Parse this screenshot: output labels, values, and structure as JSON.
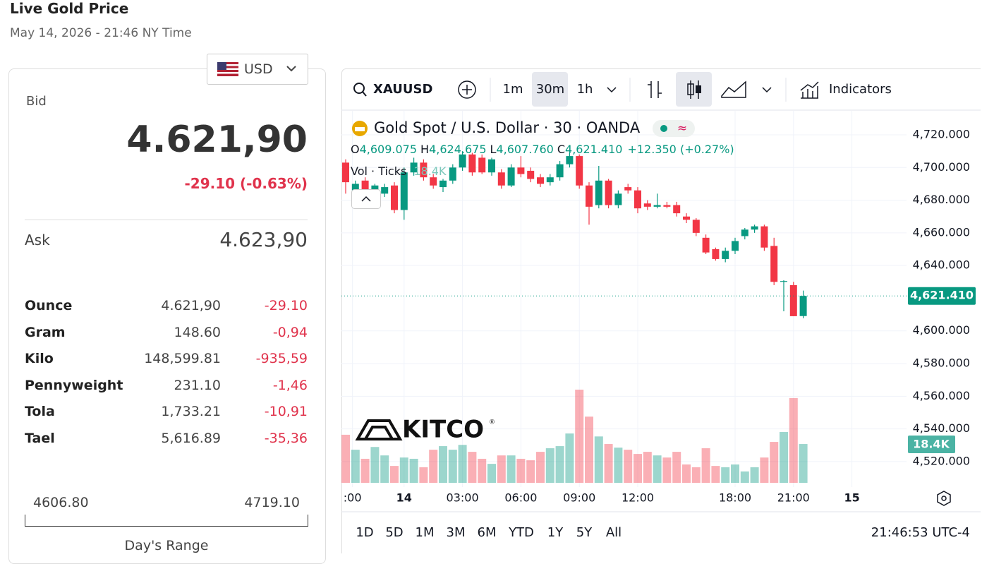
{
  "header": {
    "title": "Live Gold Price",
    "subtitle": "May 14, 2026 - 21:46 NY Time"
  },
  "currency": "USD",
  "quote": {
    "bid_label": "Bid",
    "bid": "4.621,90",
    "change": "-29.10 (-0.63%)",
    "ask_label": "Ask",
    "ask": "4.623,90"
  },
  "units": {
    "rows": [
      [
        "Ounce",
        "4.621,90",
        "-29.10"
      ],
      [
        "Gram",
        "148.60",
        "-0,94"
      ],
      [
        "Kilo",
        "148,599.81",
        "-935,59"
      ],
      [
        "Pennyweight",
        "231.10",
        "-1,46"
      ],
      [
        "Tola",
        "1,733.21",
        "-10,91"
      ],
      [
        "Tael",
        "5,616.89",
        "-35,36"
      ]
    ]
  },
  "day_range": {
    "low": "4606.80",
    "high": "4719.10",
    "label": "Day's Range"
  },
  "toolbar": {
    "symbol": "XAUUSD",
    "intervals": [
      "1m",
      "30m",
      "1h"
    ],
    "indicators": "Indicators"
  },
  "ranges": [
    "1D",
    "5D",
    "1M",
    "3M",
    "6M",
    "YTD",
    "1Y",
    "5Y",
    "All"
  ],
  "clock": "21:46:53 UTC-4",
  "chart_data": {
    "type": "candlestick",
    "title": "Gold Spot / U.S. Dollar · 30 · OANDA",
    "legend": {
      "o": "O",
      "o_value": "4,609.075",
      "h": "H",
      "h_value": "4,624.675",
      "l": "L",
      "l_value": "4,607.760",
      "c": "C",
      "c_value": "4,621.410",
      "change": "+12.350 (+0.27%)"
    },
    "volume_name": "Vol · Ticks",
    "volume_label": "18.4K",
    "last_price_label": "4,621.410",
    "watermark": "KITCO",
    "open": [
      4703,
      4686,
      4692,
      4686,
      4684,
      4689,
      4674,
      4697,
      4703,
      4694,
      4688,
      4692,
      4700,
      4708,
      4706,
      4697,
      4697,
      4689,
      4700,
      4698,
      4694,
      4691,
      4694,
      4702,
      4707,
      4689,
      4677,
      4692,
      4677,
      4688,
      4686,
      4678,
      4676,
      4677,
      4677,
      4670,
      4668,
      4657,
      4650,
      4644,
      4649,
      4658,
      4662,
      4664,
      4652,
      4630,
      4628,
      4609.075
    ],
    "high": [
      4705,
      4692,
      4694,
      4690,
      4690,
      4691,
      4700,
      4706,
      4705,
      4696,
      4693,
      4702,
      4710,
      4709,
      4708,
      4706,
      4699,
      4702,
      4707,
      4700,
      4696,
      4696,
      4704,
      4709,
      4708,
      4691,
      4701,
      4693,
      4686,
      4690,
      4688,
      4680,
      4684,
      4679,
      4679,
      4672,
      4669,
      4659,
      4651,
      4651,
      4657,
      4663,
      4665,
      4665,
      4657,
      4631,
      4630,
      4624.675
    ],
    "low": [
      4684,
      4684,
      4685,
      4684,
      4682,
      4672,
      4668,
      4695,
      4692,
      4687,
      4685,
      4690,
      4698,
      4695,
      4696,
      4695,
      4687,
      4688,
      4694,
      4691,
      4688,
      4689,
      4692,
      4700,
      4687,
      4665,
      4675,
      4675,
      4675,
      4684,
      4672,
      4674,
      4675,
      4675,
      4670,
      4666,
      4658,
      4647,
      4643,
      4642,
      4647,
      4656,
      4660,
      4649,
      4628,
      4612,
      4609,
      4607.76
    ],
    "close": [
      4691,
      4690,
      4686,
      4689,
      4688,
      4674,
      4697,
      4703,
      4694,
      4689,
      4692,
      4700,
      4708,
      4697,
      4697,
      4705,
      4689,
      4700,
      4696,
      4693,
      4690,
      4694,
      4702,
      4707,
      4689,
      4676,
      4692,
      4677,
      4684,
      4686,
      4675,
      4676,
      4677,
      4676,
      4672,
      4668,
      4660,
      4648,
      4644,
      4649,
      4655,
      4662,
      4664,
      4651,
      4630,
      4630.5,
      4609,
      4621.41
    ],
    "volume": [
      22.8,
      15.7,
      11.4,
      17,
      13,
      8,
      12,
      11.4,
      7.4,
      15.7,
      17.4,
      15.7,
      18,
      14.7,
      11.4,
      9,
      13,
      13,
      11.4,
      10.7,
      14.7,
      16.4,
      17.4,
      23.4,
      44.2,
      31.4,
      22,
      18.4,
      16.7,
      15.7,
      13.7,
      14.7,
      13,
      12,
      14.7,
      8.7,
      7.4,
      16.4,
      8,
      7.4,
      8.7,
      5.4,
      7.4,
      12,
      19.4,
      24.1,
      40.2,
      18.4
    ],
    "ylim": [
      4504.4,
      4734.7
    ],
    "yticks": [
      {
        "value": 4720,
        "label": "4,720.000"
      },
      {
        "value": 4700,
        "label": "4,700.000"
      },
      {
        "value": 4680,
        "label": "4,680.000"
      },
      {
        "value": 4660,
        "label": "4,660.000"
      },
      {
        "value": 4640,
        "label": "4,640.000"
      },
      {
        "value": 4600,
        "label": "4,600.000"
      },
      {
        "value": 4580,
        "label": "4,580.000"
      },
      {
        "value": 4560,
        "label": "4,560.000"
      },
      {
        "value": 4540,
        "label": "4,540.000"
      },
      {
        "value": 4520,
        "label": "4,520.000"
      }
    ],
    "xticks": [
      {
        "value": 0.7,
        "label": ":00"
      },
      {
        "value": 6,
        "label": "14"
      },
      {
        "value": 12,
        "label": "03:00"
      },
      {
        "value": 18,
        "label": "06:00"
      },
      {
        "value": 24,
        "label": "09:00"
      },
      {
        "value": 30,
        "label": "12:00"
      },
      {
        "value": 40,
        "label": "18:00"
      },
      {
        "value": 46,
        "label": "21:00"
      },
      {
        "value": 52,
        "label": "15"
      }
    ],
    "up_color": "#089981",
    "down_color": "#f23645",
    "grid": true
  }
}
